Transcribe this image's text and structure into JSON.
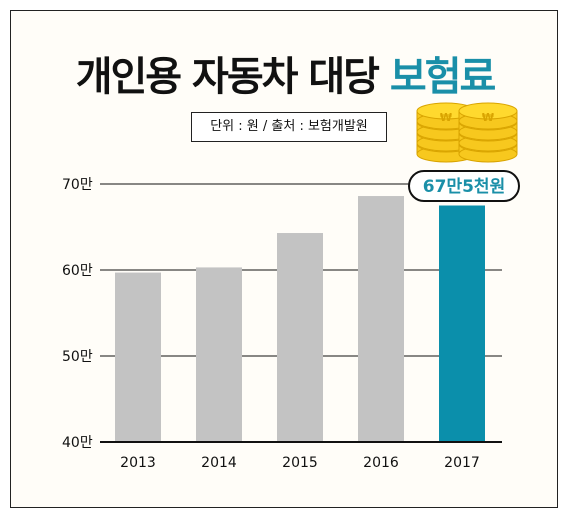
{
  "title": {
    "main": "개인용 자동차 대당",
    "highlight": "보험료"
  },
  "source_note": "단위 : 원 / 출처 : 보험개발원",
  "colors": {
    "bar": "#c3c3c3",
    "highlight_bar": "#0b8fab",
    "highlight_text": "#1a8fa8",
    "coin": "#f7c81e"
  },
  "icons": [
    "coin-stack-icon",
    "coin-stack-icon"
  ],
  "chart_data": {
    "type": "bar",
    "categories": [
      "2013",
      "2014",
      "2015",
      "2016",
      "2017"
    ],
    "values": [
      597000,
      603000,
      643000,
      686000,
      675000
    ],
    "yticks": [
      {
        "value": 400000,
        "label": "40만"
      },
      {
        "value": 500000,
        "label": "50만"
      },
      {
        "value": 600000,
        "label": "60만"
      },
      {
        "value": 700000,
        "label": "70만"
      }
    ],
    "ylim": [
      400000,
      700000
    ],
    "highlight_index": 4,
    "callout": "67만5천원",
    "grid": true
  }
}
